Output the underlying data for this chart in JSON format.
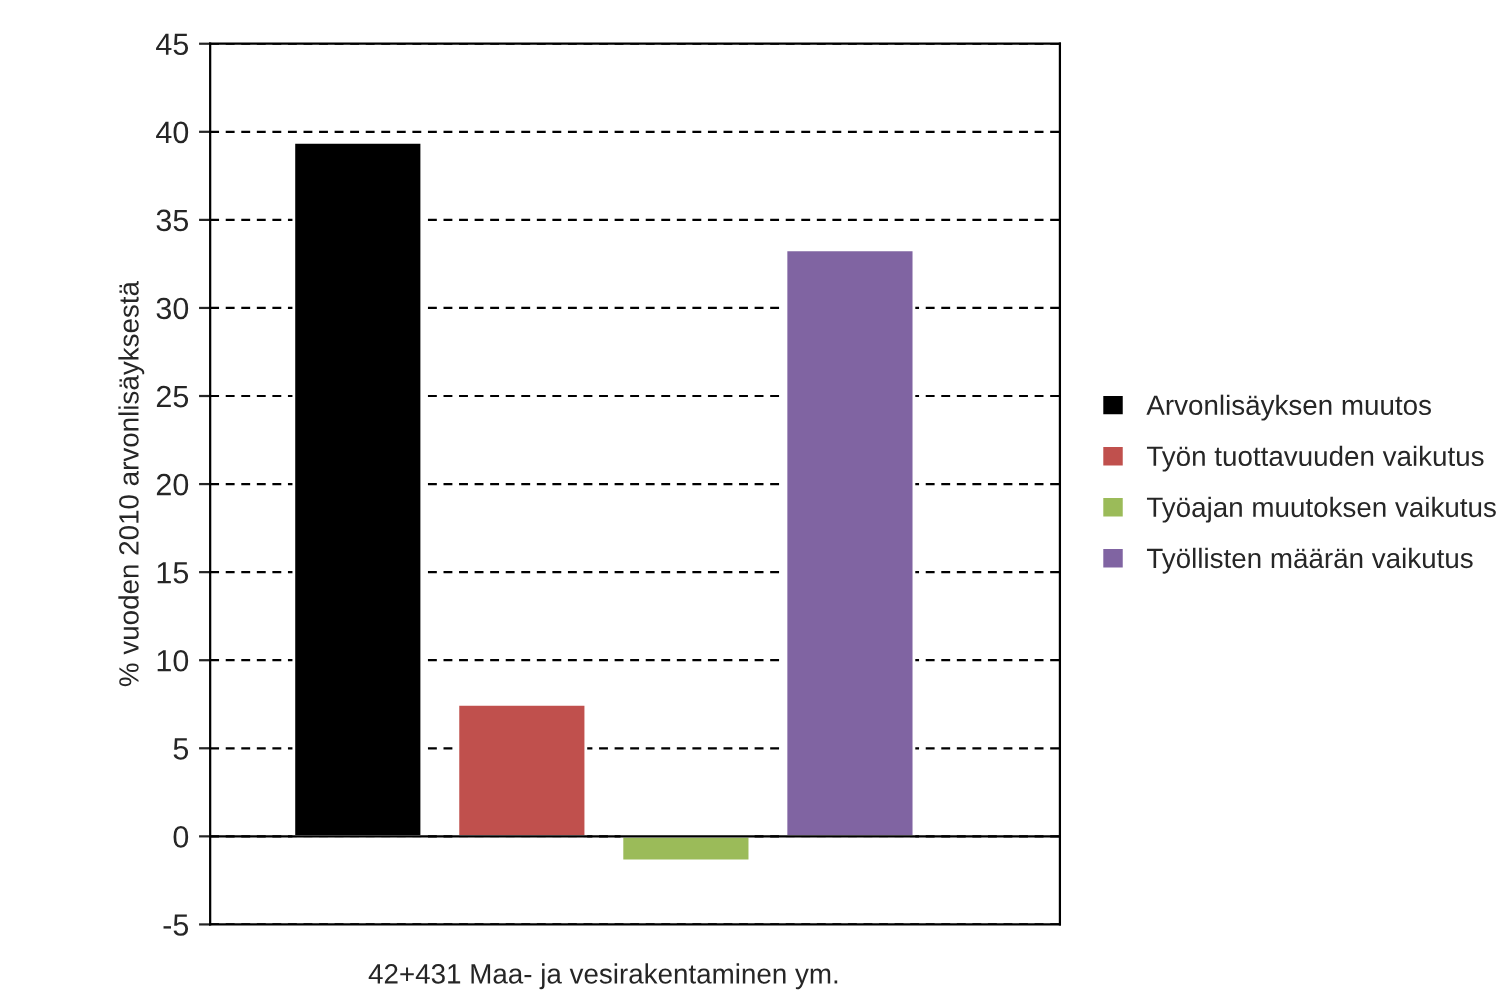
{
  "chart_data": {
    "type": "bar",
    "ylabel": "% vuoden 2010 arvonlisäyksestä",
    "categories": [
      "42+431 Maa- ja vesirakentaminen ym."
    ],
    "series": [
      {
        "name": "Arvonlisäyksen muutos",
        "color": "#000000",
        "values": [
          39.4
        ]
      },
      {
        "name": "Työn tuottavuuden vaikutus",
        "color": "#c0504d",
        "values": [
          7.5
        ]
      },
      {
        "name": "Työajan muutoksen vaikutus",
        "color": "#9bbb59",
        "values": [
          -1.4
        ]
      },
      {
        "name": "Työllisten määrän vaikutus",
        "color": "#8064a2",
        "values": [
          33.3
        ]
      }
    ],
    "ylim": [
      -5,
      45
    ],
    "yticks": [
      -5,
      0,
      5,
      10,
      15,
      20,
      25,
      30,
      35,
      40,
      45
    ],
    "grid": "y",
    "legend": "right"
  }
}
